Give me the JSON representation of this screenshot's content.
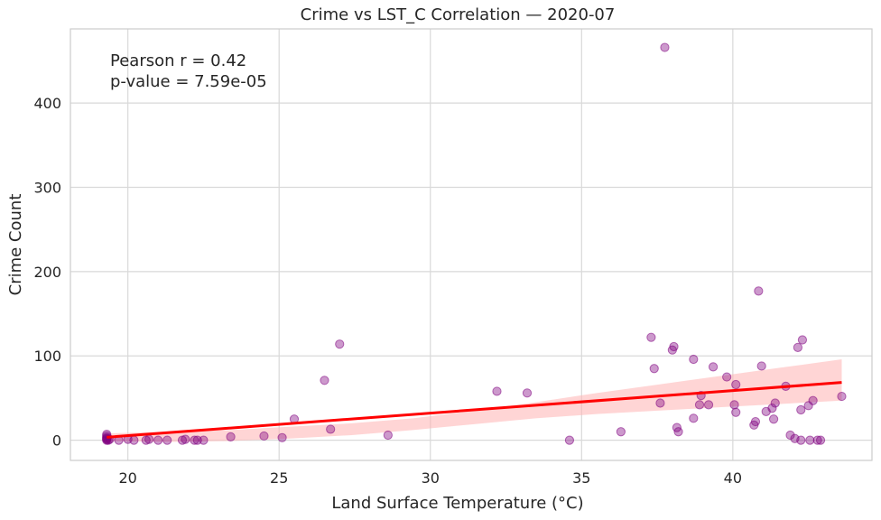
{
  "chart_data": {
    "type": "scatter",
    "title": "Crime vs LST_C Correlation — 2020-07",
    "xlabel": "Land Surface Temperature (°C)",
    "ylabel": "Crime Count",
    "xlim": [
      18.1,
      44.6
    ],
    "ylim": [
      -24,
      488
    ],
    "xticks": [
      20,
      25,
      30,
      35,
      40
    ],
    "yticks": [
      0,
      100,
      200,
      300,
      400
    ],
    "grid": true,
    "point_color": "#800080",
    "regression_color": "#ff0000",
    "ci_color": "#ffb3b3",
    "annotation": [
      "Pearson r = 0.42",
      "p-value = 7.59e-05"
    ],
    "points": [
      [
        19.3,
        0
      ],
      [
        19.3,
        1
      ],
      [
        19.3,
        2
      ],
      [
        19.3,
        3
      ],
      [
        19.3,
        5
      ],
      [
        19.3,
        7
      ],
      [
        19.35,
        0
      ],
      [
        19.4,
        1
      ],
      [
        19.7,
        0
      ],
      [
        20.0,
        1
      ],
      [
        20.2,
        0
      ],
      [
        20.6,
        0
      ],
      [
        20.7,
        1
      ],
      [
        21.0,
        0
      ],
      [
        21.3,
        0
      ],
      [
        21.8,
        0
      ],
      [
        21.9,
        1
      ],
      [
        22.2,
        0
      ],
      [
        22.3,
        0
      ],
      [
        22.5,
        0
      ],
      [
        23.4,
        4
      ],
      [
        24.5,
        5
      ],
      [
        25.1,
        3
      ],
      [
        25.5,
        25
      ],
      [
        26.5,
        71
      ],
      [
        26.7,
        13
      ],
      [
        27.0,
        114
      ],
      [
        28.6,
        6
      ],
      [
        32.2,
        58
      ],
      [
        33.2,
        56
      ],
      [
        34.6,
        0
      ],
      [
        36.3,
        10
      ],
      [
        37.3,
        122
      ],
      [
        37.4,
        85
      ],
      [
        37.6,
        44
      ],
      [
        37.75,
        466
      ],
      [
        38.0,
        107
      ],
      [
        38.05,
        111
      ],
      [
        38.15,
        15
      ],
      [
        38.2,
        10
      ],
      [
        38.7,
        26
      ],
      [
        38.7,
        96
      ],
      [
        38.9,
        42
      ],
      [
        38.95,
        53
      ],
      [
        39.2,
        42
      ],
      [
        39.35,
        87
      ],
      [
        39.8,
        75
      ],
      [
        40.05,
        42
      ],
      [
        40.1,
        66
      ],
      [
        40.1,
        33
      ],
      [
        40.7,
        18
      ],
      [
        40.75,
        22
      ],
      [
        40.85,
        177
      ],
      [
        40.95,
        88
      ],
      [
        41.1,
        34
      ],
      [
        41.3,
        38
      ],
      [
        41.35,
        25
      ],
      [
        41.4,
        44
      ],
      [
        41.75,
        64
      ],
      [
        41.9,
        6
      ],
      [
        42.05,
        2
      ],
      [
        42.15,
        110
      ],
      [
        42.25,
        0
      ],
      [
        42.25,
        36
      ],
      [
        42.3,
        119
      ],
      [
        42.5,
        41
      ],
      [
        42.55,
        0
      ],
      [
        42.65,
        47
      ],
      [
        42.8,
        0
      ],
      [
        42.9,
        0
      ],
      [
        43.6,
        52
      ]
    ],
    "regression": {
      "x": [
        19.3,
        43.6
      ],
      "y": [
        3.5,
        68.5
      ],
      "ci_lower": [
        -1,
        -2,
        -1,
        2,
        6,
        12,
        19,
        26,
        31,
        35,
        39,
        43,
        47
      ],
      "ci_upper": [
        8,
        10,
        12,
        16,
        20,
        26,
        35,
        45,
        56,
        66,
        76,
        86,
        96
      ]
    }
  }
}
